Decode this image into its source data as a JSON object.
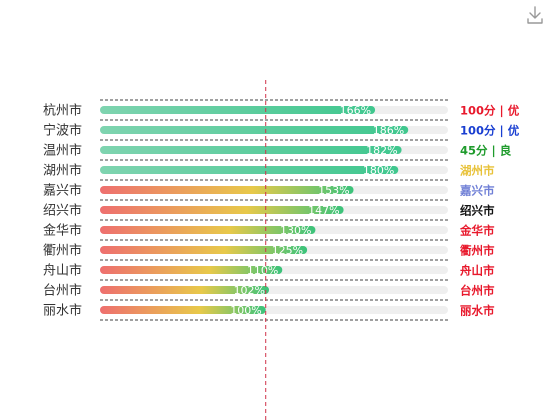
{
  "toolbox": {
    "download_icon": "download-icon"
  },
  "colors": {
    "green_start": "#7fd4b0",
    "green_end": "#3fc78e",
    "red_start": "#ee6f6f",
    "yellow_mid": "#e8c94a",
    "lime_end": "#39c37b",
    "track": "#efefef",
    "axis_text": "#333333",
    "marker_line": "#d0334a",
    "row_line": "#000000",
    "value_text": "#ffffff"
  },
  "chart_data": {
    "type": "bar",
    "orientation": "horizontal",
    "categories": [
      "杭州市",
      "宁波市",
      "温州市",
      "湖州市",
      "嘉兴市",
      "绍兴市",
      "金华市",
      "衢州市",
      "舟山市",
      "台州市",
      "丽水市"
    ],
    "values": [
      166,
      186,
      182,
      180,
      153,
      147,
      130,
      125,
      110,
      102,
      100
    ],
    "value_labels": [
      "166%",
      "186%",
      "182%",
      "180%",
      "153%",
      "147%",
      "130%",
      "125%",
      "110%",
      "102%",
      "100%"
    ],
    "xlim": [
      0,
      210
    ],
    "reference_line": 100,
    "right_labels": [
      {
        "text": "100分 | 优",
        "color": "#e8192c"
      },
      {
        "text": "100分 | 优",
        "color": "#1a3fd1"
      },
      {
        "text": "45分 | 良",
        "color": "#1f9b2c"
      },
      {
        "text": "湖州市",
        "color": "#e8c23a"
      },
      {
        "text": "嘉兴市",
        "color": "#6f7fd6"
      },
      {
        "text": "绍兴市",
        "color": "#111111"
      },
      {
        "text": "金华市",
        "color": "#e8192c"
      },
      {
        "text": "衢州市",
        "color": "#e8192c"
      },
      {
        "text": "舟山市",
        "color": "#e8192c"
      },
      {
        "text": "台州市",
        "color": "#e8192c"
      },
      {
        "text": "丽水市",
        "color": "#e8192c"
      }
    ],
    "bar_style": [
      "green",
      "green",
      "green",
      "green",
      "warm",
      "warm",
      "warm",
      "warm",
      "warm",
      "warm",
      "warm"
    ],
    "grid": false,
    "legend": "none"
  }
}
